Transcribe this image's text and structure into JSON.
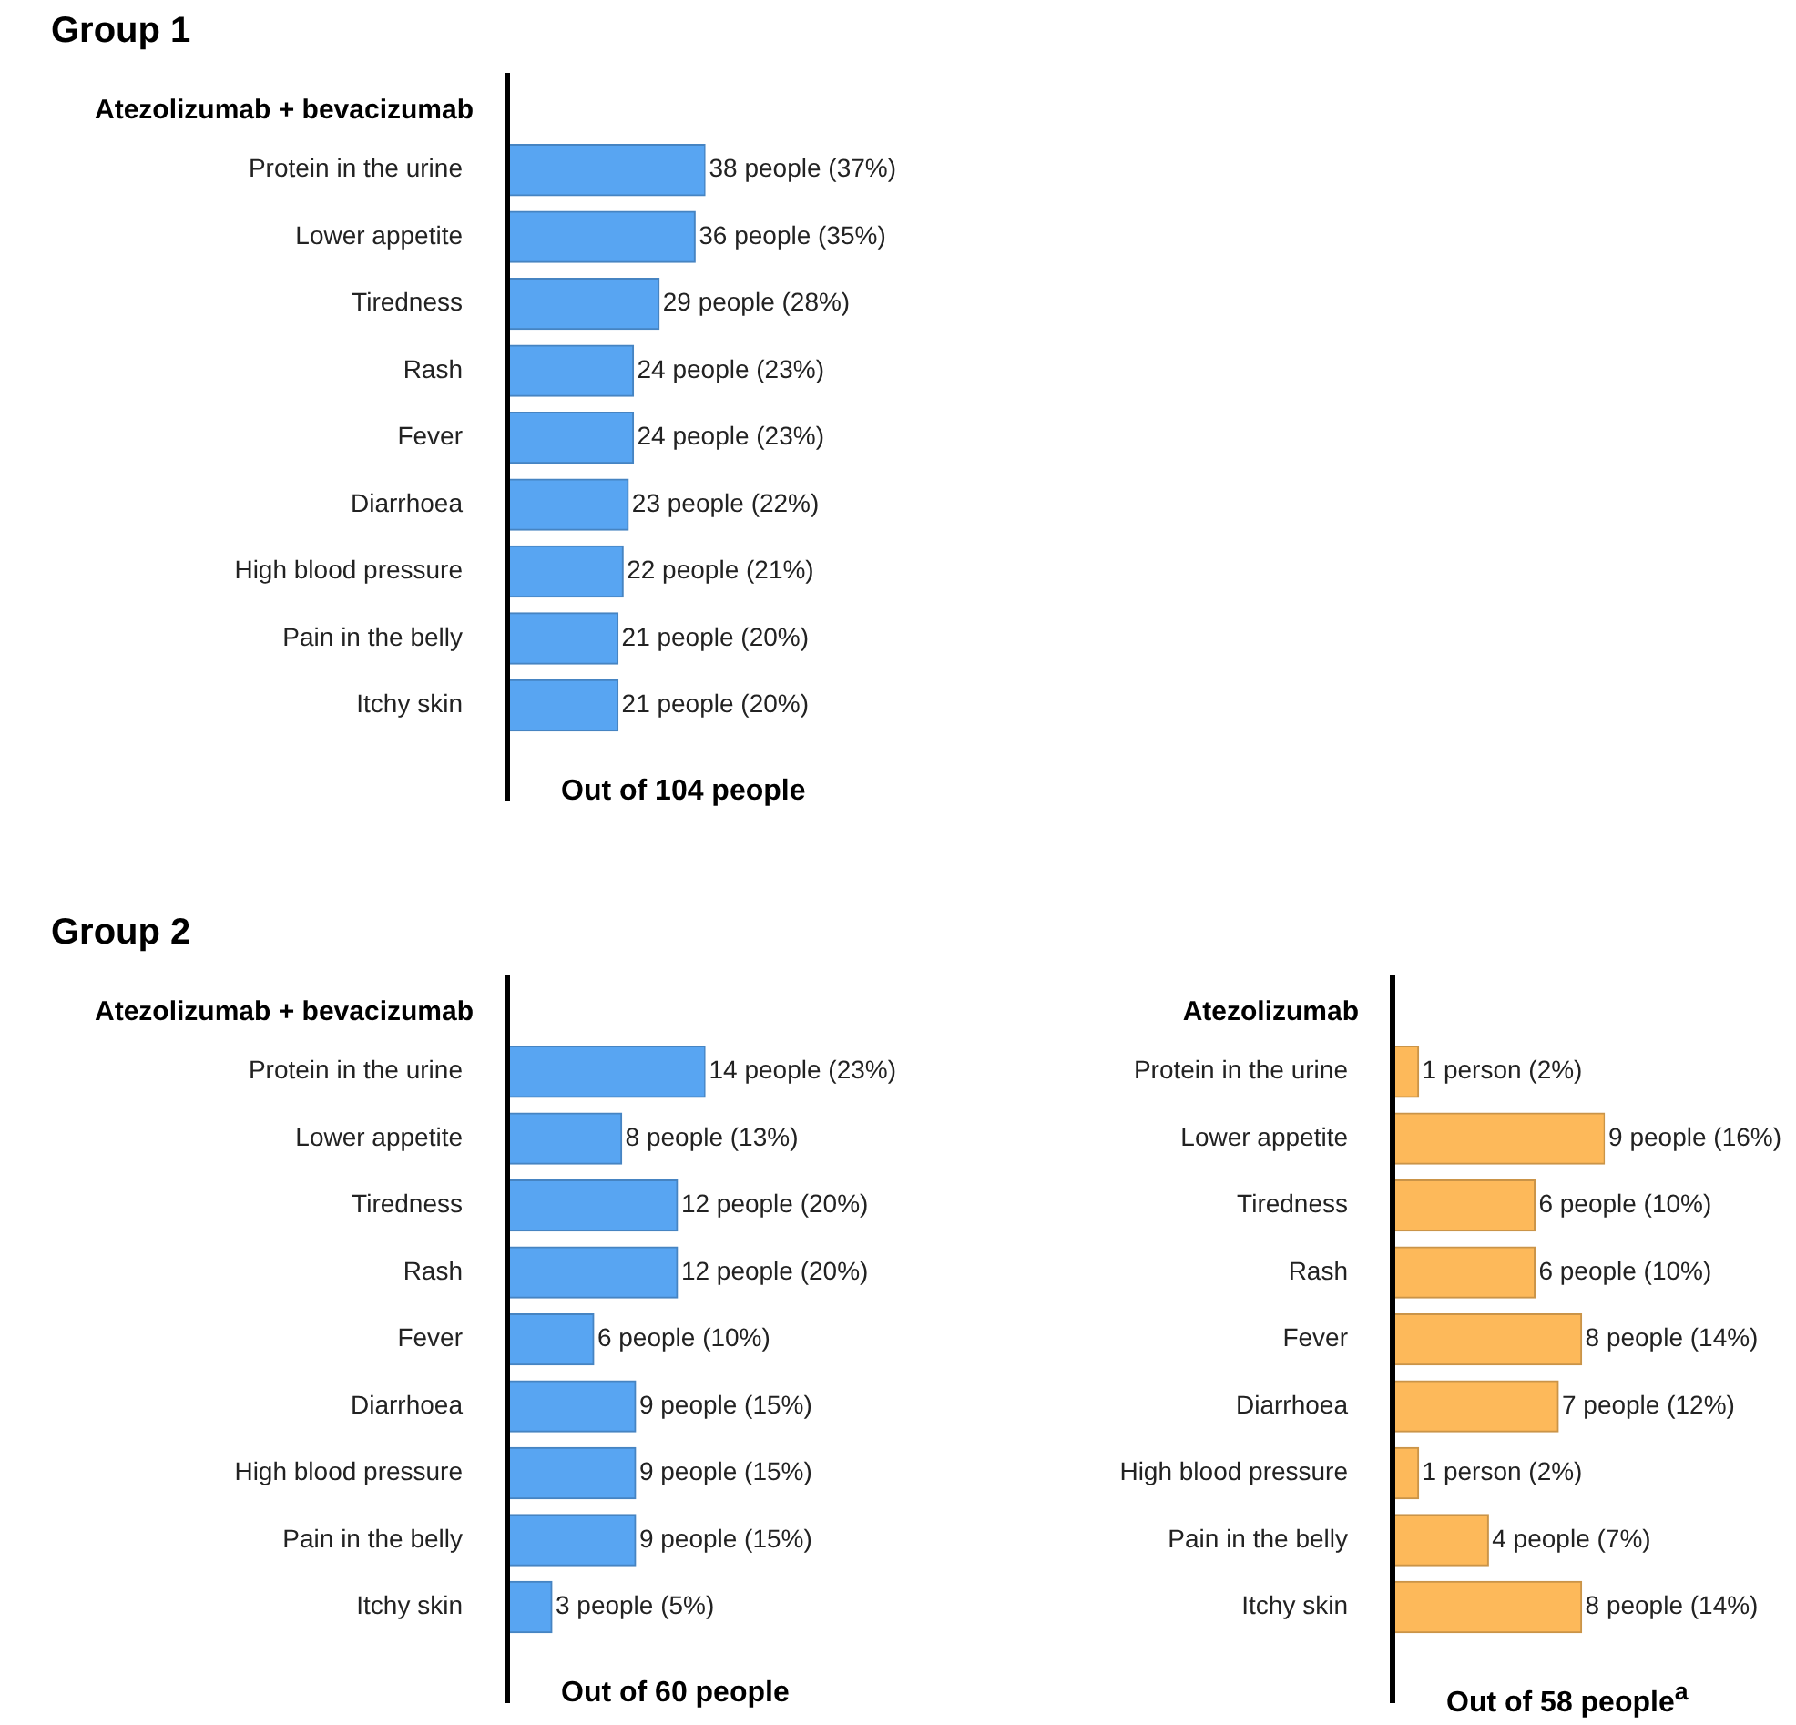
{
  "chart_data": [
    {
      "type": "bar",
      "orientation": "horizontal",
      "title": "Group 1",
      "subtitle": "Atezolizumab + bevacizumab",
      "xlabel": "Out of 104 people",
      "categories": [
        "Protein in the urine",
        "Lower appetite",
        "Tiredness",
        "Rash",
        "Fever",
        "Diarrhoea",
        "High blood pressure",
        "Pain in the belly",
        "Itchy skin"
      ],
      "values": [
        38,
        36,
        29,
        24,
        24,
        23,
        22,
        21,
        21
      ],
      "value_labels": [
        "38 people (37%)",
        "36 people (35%)",
        "29 people (28%)",
        "24 people (23%)",
        "24 people (23%)",
        "23 people (22%)",
        "22 people (21%)",
        "21 people (20%)",
        "21 people (20%)"
      ],
      "color": "#58a5f2",
      "legend": false,
      "tick_labels": "y"
    },
    {
      "type": "bar",
      "orientation": "horizontal",
      "title": "Group 2",
      "subtitle": "Atezolizumab + bevacizumab",
      "xlabel": "Out of 60 people",
      "categories": [
        "Protein in the urine",
        "Lower appetite",
        "Tiredness",
        "Rash",
        "Fever",
        "Diarrhoea",
        "High blood pressure",
        "Pain in the belly",
        "Itchy skin"
      ],
      "values": [
        14,
        8,
        12,
        12,
        6,
        9,
        9,
        9,
        3
      ],
      "value_labels": [
        "14 people (23%)",
        "8 people (13%)",
        "12 people (20%)",
        "12 people (20%)",
        "6 people (10%)",
        "9 people (15%)",
        "9 people (15%)",
        "9 people (15%)",
        "3 people (5%)"
      ],
      "color": "#58a5f2",
      "legend": false,
      "tick_labels": "y"
    },
    {
      "type": "bar",
      "orientation": "horizontal",
      "subtitle": "Atezolizumab",
      "xlabel": "Out of 58 people$^{a}$",
      "categories": [
        "Protein in the urine",
        "Lower appetite",
        "Tiredness",
        "Rash",
        "Fever",
        "Diarrhoea",
        "High blood pressure",
        "Pain in the belly",
        "Itchy skin"
      ],
      "values": [
        1,
        9,
        6,
        6,
        8,
        7,
        1,
        4,
        8
      ],
      "value_labels": [
        "1 person (2%)",
        "9 people (16%)",
        "6 people (10%)",
        "6 people (10%)",
        "8 people (14%)",
        "7 people (12%)",
        "1 person (2%)",
        "4 people (7%)",
        "8 people (14%)"
      ],
      "color": "#fdb95a",
      "legend": false,
      "tick_labels": "y"
    }
  ]
}
